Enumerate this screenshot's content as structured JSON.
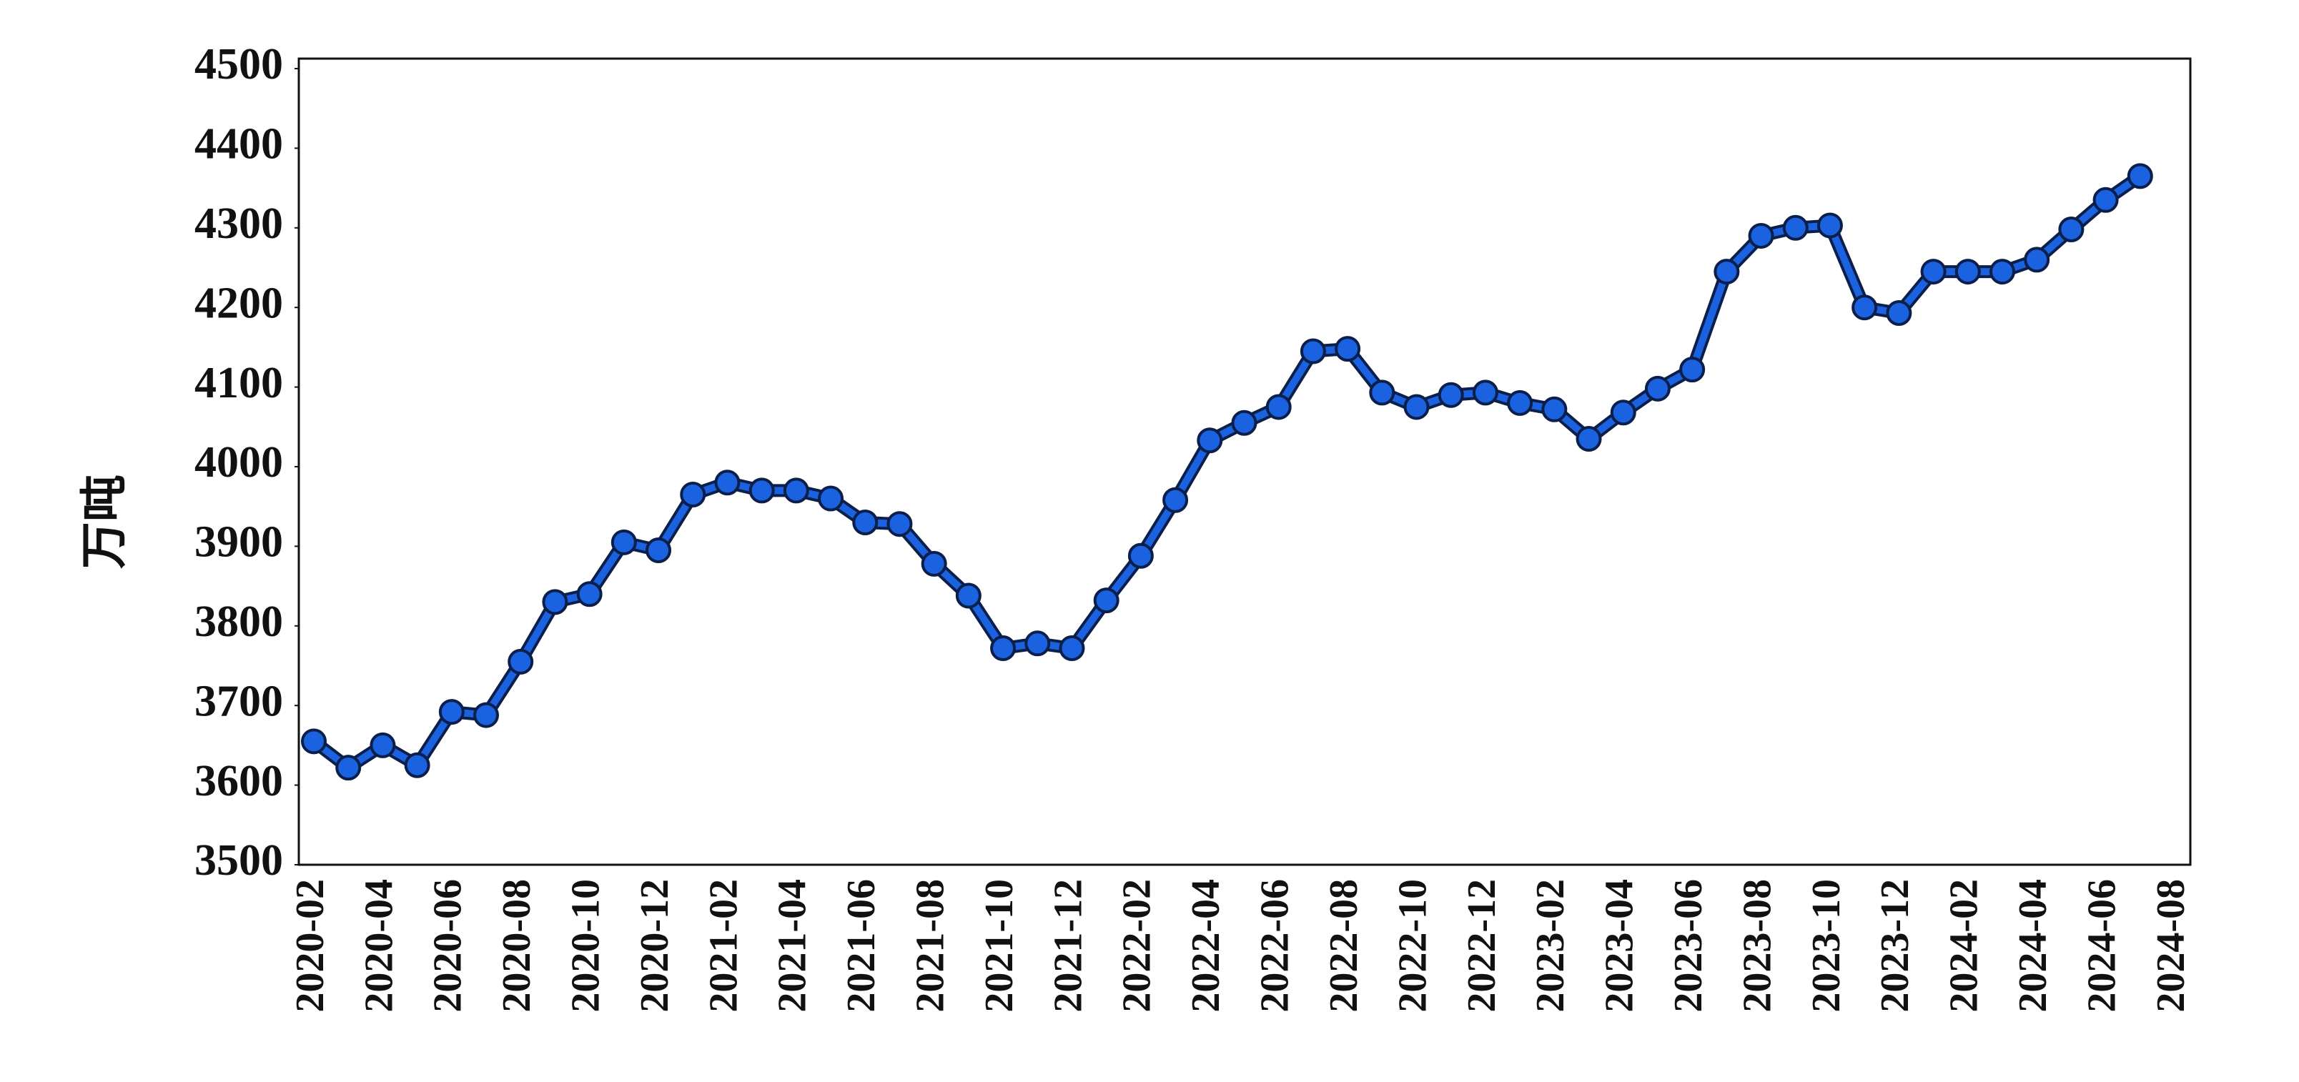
{
  "chart_data": {
    "type": "line",
    "y_label": "万吨",
    "categories": [
      "2020-02",
      null,
      "2020-04",
      null,
      "2020-06",
      null,
      "2020-08",
      null,
      "2020-10",
      null,
      "2020-12",
      null,
      "2021-02",
      null,
      "2021-04",
      null,
      "2021-06",
      null,
      "2021-08",
      null,
      "2021-10",
      null,
      "2021-12",
      null,
      "2022-02",
      null,
      "2022-04",
      null,
      "2022-06",
      null,
      "2022-08",
      null,
      "2022-10",
      null,
      "2022-12",
      null,
      "2023-02",
      null,
      "2023-04",
      null,
      "2023-06",
      null,
      "2023-08",
      null,
      "2023-10",
      null,
      "2023-12",
      null,
      "2024-02",
      null,
      "2024-04",
      null,
      "2024-06",
      null,
      "2024-08"
    ],
    "values": [
      3655,
      3622,
      3650,
      3625,
      3692,
      3688,
      3755,
      3830,
      3840,
      3905,
      3895,
      3965,
      3980,
      3970,
      3970,
      3960,
      3930,
      3928,
      3878,
      3838,
      3772,
      3778,
      3772,
      3832,
      3888,
      3958,
      4033,
      4055,
      4075,
      4145,
      4148,
      4093,
      4075,
      4090,
      4093,
      4080,
      4072,
      4035,
      4068,
      4098,
      4122,
      4245,
      4290,
      4300,
      4303,
      4200,
      4193,
      4245,
      4245,
      4245,
      4260,
      4298,
      4335,
      4365,
      null
    ],
    "color": "#1a62e0",
    "ylim": [
      3500,
      4500
    ],
    "yticks": [
      3500,
      3600,
      3700,
      3800,
      3900,
      4000,
      4100,
      4200,
      4300,
      4400,
      4500
    ],
    "grid": false
  }
}
